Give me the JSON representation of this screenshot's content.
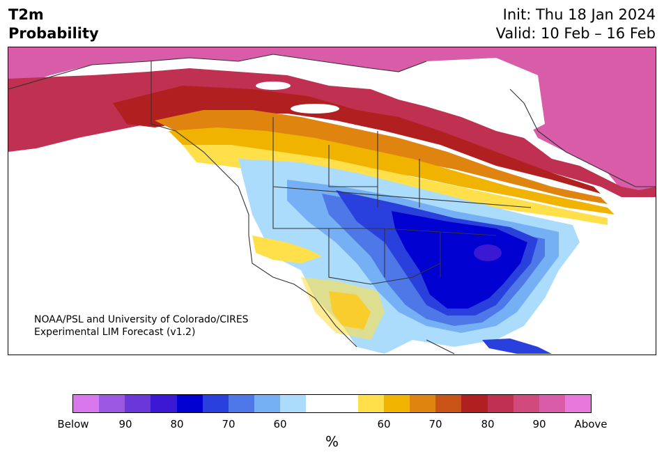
{
  "title": {
    "line1": "T2m",
    "line2": "Probability"
  },
  "forecast": {
    "init": "Init: Thu 18 Jan 2024",
    "valid": "Valid: 10 Feb – 16 Feb"
  },
  "credit": {
    "line1": "NOAA/PSL and University of Colorado/CIRES",
    "line2": "Experimental LIM Forecast (v1.2)"
  },
  "colorbar": {
    "colors": [
      "#d878ec",
      "#9c58e0",
      "#6a38d8",
      "#3a18d4",
      "#0000d0",
      "#2a40dc",
      "#4e78e8",
      "#76b0f4",
      "#acdcfc",
      "#ffffff",
      "#ffffff",
      "#ffe04a",
      "#f0b400",
      "#e08410",
      "#c85418",
      "#b02020",
      "#c03050",
      "#d04a7c",
      "#d85ca8",
      "#e878dc"
    ],
    "labels": [
      "Below",
      "90",
      "80",
      "70",
      "60",
      "60",
      "70",
      "80",
      "90",
      "Above"
    ],
    "unit": "%"
  }
}
